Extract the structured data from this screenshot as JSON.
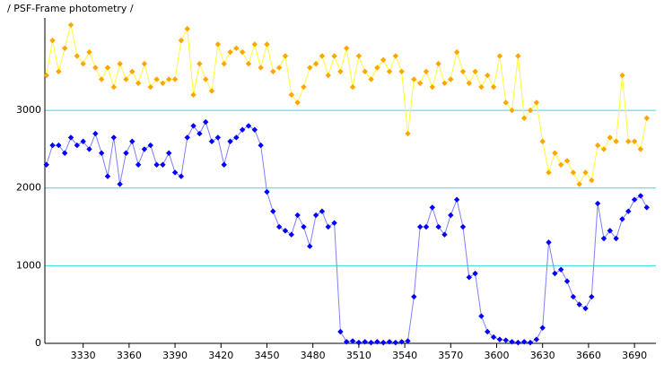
{
  "chart_data": {
    "type": "line",
    "title": "/ PSF-Frame photometry /",
    "x": [
      3306,
      3310,
      3314,
      3318,
      3322,
      3326,
      3330,
      3334,
      3338,
      3342,
      3346,
      3350,
      3354,
      3358,
      3362,
      3366,
      3370,
      3374,
      3378,
      3382,
      3386,
      3390,
      3394,
      3398,
      3402,
      3406,
      3410,
      3414,
      3418,
      3422,
      3426,
      3430,
      3434,
      3438,
      3442,
      3446,
      3450,
      3454,
      3458,
      3462,
      3466,
      3470,
      3474,
      3478,
      3482,
      3486,
      3490,
      3494,
      3498,
      3502,
      3506,
      3510,
      3514,
      3518,
      3522,
      3526,
      3530,
      3534,
      3538,
      3542,
      3546,
      3550,
      3554,
      3558,
      3562,
      3566,
      3570,
      3574,
      3578,
      3582,
      3586,
      3590,
      3594,
      3598,
      3602,
      3606,
      3610,
      3614,
      3618,
      3622,
      3626,
      3630,
      3634,
      3638,
      3642,
      3646,
      3650,
      3654,
      3658,
      3662,
      3666,
      3670,
      3674,
      3678,
      3682,
      3686,
      3690,
      3694,
      3698
    ],
    "series": [
      {
        "color": "#ffa500",
        "line_color": "#ffff33",
        "values": [
          3450,
          3900,
          3500,
          3800,
          4100,
          3700,
          3600,
          3750,
          3550,
          3400,
          3550,
          3300,
          3600,
          3400,
          3500,
          3350,
          3600,
          3300,
          3400,
          3350,
          3400,
          3400,
          3900,
          4050,
          3200,
          3600,
          3400,
          3250,
          3850,
          3600,
          3750,
          3800,
          3750,
          3600,
          3850,
          3550,
          3850,
          3500,
          3550,
          3700,
          3200,
          3100,
          3300,
          3550,
          3600,
          3700,
          3450,
          3700,
          3500,
          3800,
          3300,
          3700,
          3500,
          3400,
          3550,
          3650,
          3500,
          3700,
          3500,
          2700,
          3400,
          3350,
          3500,
          3300,
          3600,
          3350,
          3400,
          3750,
          3500,
          3350,
          3500,
          3300,
          3450,
          3300,
          3700,
          3100,
          3000,
          3700,
          2900,
          3000,
          3100,
          2600,
          2200,
          2450,
          2300,
          2350,
          2200,
          2050,
          2200,
          2100,
          2550,
          2500,
          2650,
          2600,
          3450,
          2600,
          2600,
          2500,
          2900
        ]
      },
      {
        "color": "#0000ff",
        "line_color": "#7f7fff",
        "values": [
          2300,
          2550,
          2550,
          2450,
          2650,
          2550,
          2600,
          2500,
          2700,
          2450,
          2150,
          2650,
          2050,
          2450,
          2600,
          2300,
          2500,
          2550,
          2300,
          2300,
          2450,
          2200,
          2150,
          2650,
          2800,
          2700,
          2850,
          2600,
          2650,
          2300,
          2600,
          2650,
          2750,
          2800,
          2750,
          2550,
          1950,
          1700,
          1500,
          1450,
          1400,
          1650,
          1500,
          1250,
          1650,
          1700,
          1500,
          1550,
          150,
          20,
          30,
          10,
          20,
          10,
          20,
          10,
          20,
          10,
          20,
          30,
          600,
          1500,
          1500,
          1750,
          1500,
          1400,
          1650,
          1850,
          1500,
          850,
          900,
          350,
          150,
          80,
          50,
          40,
          20,
          10,
          20,
          10,
          50,
          200,
          1300,
          900,
          950,
          800,
          600,
          500,
          450,
          600,
          1800,
          1350,
          1450,
          1350,
          1600,
          1700,
          1850,
          1900,
          1750
        ]
      }
    ],
    "xlim": [
      3305,
      3704
    ],
    "ylim": [
      0,
      4190
    ],
    "xticks": [
      3330,
      3360,
      3390,
      3420,
      3450,
      3480,
      3510,
      3540,
      3570,
      3600,
      3630,
      3660,
      3690
    ],
    "yticks": [
      0,
      1000,
      2000,
      3000
    ],
    "grid": true,
    "grid_color": "#33dddd"
  }
}
